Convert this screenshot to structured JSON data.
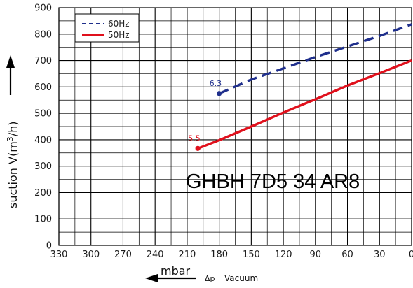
{
  "chart_data": {
    "type": "line",
    "title": "",
    "model": "GHBH 7D5 34 AR8",
    "xlabel": {
      "unit": "mbar",
      "symbol": "Δp",
      "text": "Vacuum"
    },
    "ylabel": {
      "prefix": "suction V(m",
      "sup": "3",
      "suffix": "/h)"
    },
    "xlim": [
      330,
      0
    ],
    "x_reversed": true,
    "ylim": [
      0,
      900
    ],
    "xticks": [
      330,
      300,
      270,
      240,
      210,
      180,
      150,
      120,
      90,
      60,
      30,
      0
    ],
    "yticks": [
      0,
      100,
      200,
      300,
      400,
      500,
      600,
      700,
      800,
      900
    ],
    "x_minor_step": 15,
    "y_minor_step": 50,
    "grid": true,
    "legend_position": "top-left",
    "series": [
      {
        "name": "60Hz",
        "color": "#1f2f8c",
        "dash": true,
        "x": [
          180,
          150,
          120,
          90,
          60,
          30,
          0
        ],
        "y": [
          575,
          628,
          670,
          713,
          753,
          793,
          837
        ],
        "marker": {
          "x": 180,
          "y": 575,
          "label": "6.3"
        }
      },
      {
        "name": "50Hz",
        "color": "#e0101c",
        "dash": false,
        "x": [
          200,
          180,
          150,
          120,
          90,
          60,
          30,
          0
        ],
        "y": [
          367,
          398,
          450,
          503,
          553,
          605,
          652,
          700
        ],
        "marker": {
          "x": 200,
          "y": 367,
          "label": "5.5"
        }
      }
    ]
  }
}
